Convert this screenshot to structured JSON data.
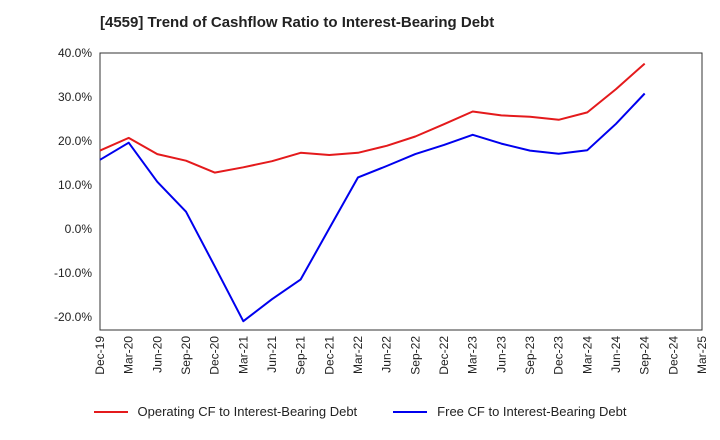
{
  "chart_data": {
    "type": "line",
    "title": "[4559]  Trend of Cashflow Ratio to Interest-Bearing Debt",
    "xlabel": "",
    "ylabel": "",
    "categories": [
      "Dec-19",
      "Mar-20",
      "Jun-20",
      "Sep-20",
      "Dec-20",
      "Mar-21",
      "Jun-21",
      "Sep-21",
      "Dec-21",
      "Mar-22",
      "Jun-22",
      "Sep-22",
      "Dec-22",
      "Mar-23",
      "Jun-23",
      "Sep-23",
      "Dec-23",
      "Mar-24",
      "Jun-24",
      "Sep-24",
      "Dec-24",
      "Mar-25"
    ],
    "yticks": [
      "40.0%",
      "30.0%",
      "20.0%",
      "10.0%",
      "0.0%",
      "-10.0%",
      "-20.0%"
    ],
    "ytick_values": [
      40,
      30,
      20,
      10,
      0,
      -10,
      -20
    ],
    "ylim": [
      -23,
      40
    ],
    "grid": true,
    "legend_position": "bottom",
    "series": [
      {
        "name": "Operating CF to Interest-Bearing Debt",
        "color": "#e41a1c",
        "values": [
          17.8,
          20.7,
          17.0,
          15.5,
          12.8,
          14.0,
          15.4,
          17.3,
          16.8,
          17.3,
          18.9,
          21.0,
          23.8,
          26.7,
          25.8,
          25.5,
          24.8,
          26.5,
          31.8,
          37.6,
          null,
          null
        ]
      },
      {
        "name": "Free CF to Interest-Bearing Debt",
        "color": "#0000ee",
        "values": [
          15.7,
          19.6,
          10.7,
          3.9,
          -8.5,
          -21.0,
          -16.0,
          -11.5,
          0.1,
          11.7,
          14.3,
          17.0,
          19.1,
          21.4,
          19.4,
          17.8,
          17.1,
          17.9,
          23.9,
          30.8,
          null,
          null
        ]
      }
    ]
  }
}
